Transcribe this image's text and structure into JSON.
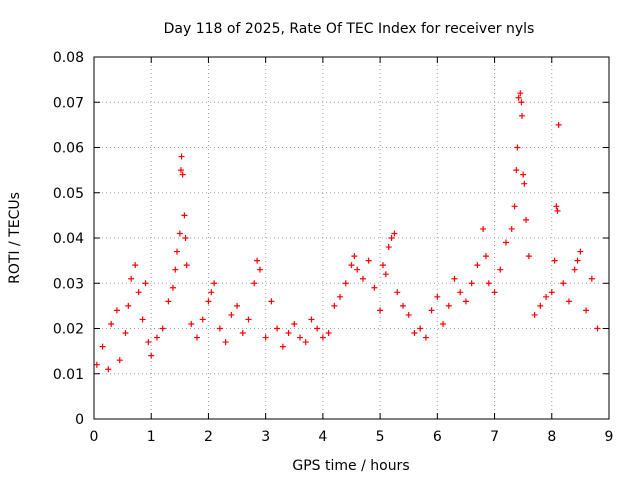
{
  "chart_data": {
    "type": "scatter",
    "title": "Day 118 of 2025, Rate Of TEC Index for receiver nyls",
    "xlabel": "GPS time / hours",
    "ylabel": "ROTI / TECUs",
    "xlim": [
      0,
      9
    ],
    "ylim": [
      0,
      0.08
    ],
    "xticks": [
      "0",
      "1",
      "2",
      "3",
      "4",
      "5",
      "6",
      "7",
      "8",
      "9"
    ],
    "yticks": [
      "0",
      "0.01",
      "0.02",
      "0.03",
      "0.04",
      "0.05",
      "0.06",
      "0.07",
      "0.08"
    ],
    "grid": true,
    "marker": "+",
    "series": [
      {
        "name": "ROTI",
        "color": "#ff0000",
        "points": [
          [
            0.05,
            0.012
          ],
          [
            0.15,
            0.016
          ],
          [
            0.25,
            0.011
          ],
          [
            0.3,
            0.021
          ],
          [
            0.4,
            0.024
          ],
          [
            0.45,
            0.013
          ],
          [
            0.55,
            0.019
          ],
          [
            0.6,
            0.025
          ],
          [
            0.65,
            0.031
          ],
          [
            0.72,
            0.034
          ],
          [
            0.78,
            0.028
          ],
          [
            0.85,
            0.022
          ],
          [
            0.9,
            0.03
          ],
          [
            0.95,
            0.017
          ],
          [
            1.0,
            0.014
          ],
          [
            1.1,
            0.018
          ],
          [
            1.2,
            0.02
          ],
          [
            1.3,
            0.026
          ],
          [
            1.38,
            0.029
          ],
          [
            1.42,
            0.033
          ],
          [
            1.45,
            0.037
          ],
          [
            1.5,
            0.041
          ],
          [
            1.52,
            0.055
          ],
          [
            1.53,
            0.058
          ],
          [
            1.55,
            0.054
          ],
          [
            1.58,
            0.045
          ],
          [
            1.6,
            0.04
          ],
          [
            1.62,
            0.034
          ],
          [
            1.7,
            0.021
          ],
          [
            1.8,
            0.018
          ],
          [
            1.9,
            0.022
          ],
          [
            2.0,
            0.026
          ],
          [
            2.05,
            0.028
          ],
          [
            2.1,
            0.03
          ],
          [
            2.2,
            0.02
          ],
          [
            2.3,
            0.017
          ],
          [
            2.4,
            0.023
          ],
          [
            2.5,
            0.025
          ],
          [
            2.6,
            0.019
          ],
          [
            2.7,
            0.022
          ],
          [
            2.8,
            0.03
          ],
          [
            2.85,
            0.035
          ],
          [
            2.9,
            0.033
          ],
          [
            3.0,
            0.018
          ],
          [
            3.1,
            0.026
          ],
          [
            3.2,
            0.02
          ],
          [
            3.3,
            0.016
          ],
          [
            3.4,
            0.019
          ],
          [
            3.5,
            0.021
          ],
          [
            3.6,
            0.018
          ],
          [
            3.7,
            0.017
          ],
          [
            3.8,
            0.022
          ],
          [
            3.9,
            0.02
          ],
          [
            4.0,
            0.018
          ],
          [
            4.1,
            0.019
          ],
          [
            4.2,
            0.025
          ],
          [
            4.3,
            0.027
          ],
          [
            4.4,
            0.03
          ],
          [
            4.5,
            0.034
          ],
          [
            4.55,
            0.036
          ],
          [
            4.6,
            0.033
          ],
          [
            4.7,
            0.031
          ],
          [
            4.8,
            0.035
          ],
          [
            4.9,
            0.029
          ],
          [
            5.0,
            0.024
          ],
          [
            5.05,
            0.034
          ],
          [
            5.1,
            0.032
          ],
          [
            5.15,
            0.038
          ],
          [
            5.2,
            0.04
          ],
          [
            5.25,
            0.041
          ],
          [
            5.3,
            0.028
          ],
          [
            5.4,
            0.025
          ],
          [
            5.5,
            0.023
          ],
          [
            5.6,
            0.019
          ],
          [
            5.7,
            0.02
          ],
          [
            5.8,
            0.018
          ],
          [
            5.9,
            0.024
          ],
          [
            6.0,
            0.027
          ],
          [
            6.1,
            0.021
          ],
          [
            6.2,
            0.025
          ],
          [
            6.3,
            0.031
          ],
          [
            6.4,
            0.028
          ],
          [
            6.5,
            0.026
          ],
          [
            6.6,
            0.03
          ],
          [
            6.7,
            0.034
          ],
          [
            6.8,
            0.042
          ],
          [
            6.85,
            0.036
          ],
          [
            6.9,
            0.03
          ],
          [
            7.0,
            0.028
          ],
          [
            7.1,
            0.033
          ],
          [
            7.2,
            0.039
          ],
          [
            7.3,
            0.042
          ],
          [
            7.35,
            0.047
          ],
          [
            7.38,
            0.055
          ],
          [
            7.4,
            0.06
          ],
          [
            7.42,
            0.071
          ],
          [
            7.45,
            0.072
          ],
          [
            7.47,
            0.07
          ],
          [
            7.48,
            0.067
          ],
          [
            7.5,
            0.054
          ],
          [
            7.52,
            0.052
          ],
          [
            7.55,
            0.044
          ],
          [
            7.6,
            0.036
          ],
          [
            7.7,
            0.023
          ],
          [
            7.8,
            0.025
          ],
          [
            7.9,
            0.027
          ],
          [
            8.0,
            0.028
          ],
          [
            8.05,
            0.035
          ],
          [
            8.08,
            0.047
          ],
          [
            8.1,
            0.046
          ],
          [
            8.12,
            0.065
          ],
          [
            8.2,
            0.03
          ],
          [
            8.3,
            0.026
          ],
          [
            8.4,
            0.033
          ],
          [
            8.45,
            0.035
          ],
          [
            8.5,
            0.037
          ],
          [
            8.6,
            0.024
          ],
          [
            8.7,
            0.031
          ],
          [
            8.8,
            0.02
          ]
        ]
      }
    ]
  }
}
